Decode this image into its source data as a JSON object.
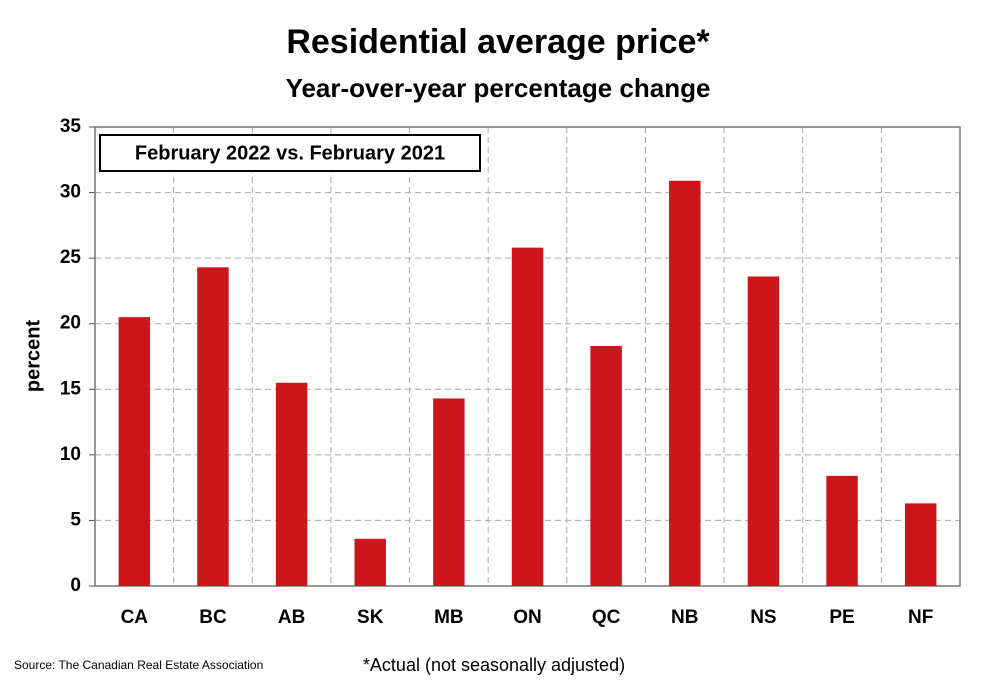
{
  "chart_data": {
    "type": "bar",
    "title": "Residential average price*",
    "subtitle": "Year-over-year percentage change",
    "annotation": "February 2022 vs. February 2021",
    "y_label": "percent",
    "source": "Source: The Canadian Real Estate Association",
    "footnote": "*Actual (not seasonally adjusted)",
    "categories": [
      "CA",
      "BC",
      "AB",
      "SK",
      "MB",
      "ON",
      "QC",
      "NB",
      "NS",
      "PE",
      "NF"
    ],
    "values": [
      20.5,
      24.3,
      15.5,
      3.6,
      14.3,
      25.8,
      18.3,
      30.9,
      23.6,
      8.4,
      6.3
    ],
    "color": "#cc161c",
    "ylim": [
      0,
      35
    ],
    "yticks": [
      0,
      5,
      10,
      15,
      20,
      25,
      30,
      35
    ],
    "grid": true
  }
}
